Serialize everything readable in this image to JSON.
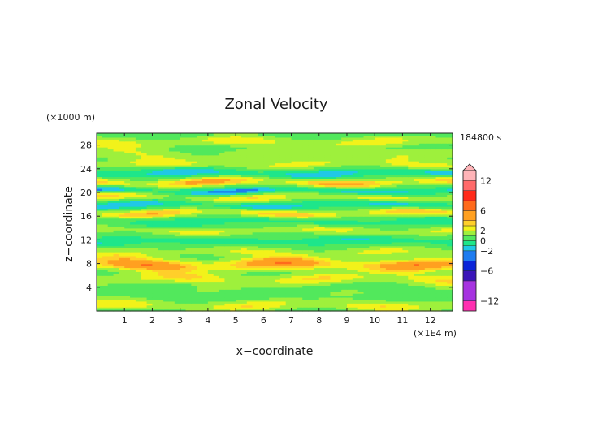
{
  "chart_data": {
    "type": "heatmap",
    "title": "Zonal Velocity",
    "xlabel": "x−coordinate",
    "ylabel": "z−coordinate",
    "x_unit": "(×1E4 m)",
    "y_unit": "(×1000 m)",
    "time_label": "184800 s",
    "xlim": [
      0,
      12.8
    ],
    "ylim": [
      0,
      30
    ],
    "x_ticks": [
      "1",
      "2",
      "3",
      "4",
      "5",
      "6",
      "7",
      "8",
      "9",
      "10",
      "11",
      "12"
    ],
    "y_ticks": [
      "4",
      "8",
      "12",
      "16",
      "20",
      "24",
      "28"
    ],
    "colorbar": {
      "range": [
        -14,
        14
      ],
      "tick_labels": [
        "12",
        "6",
        "2",
        "0",
        "−2",
        "−6",
        "−12"
      ],
      "tick_values": [
        12,
        6,
        2,
        0,
        -2,
        -6,
        -12
      ],
      "colors": {
        "lt_neg14": "#ff2fb0",
        "lt_neg12": "#a633e0",
        "lt_neg8": "#3a14b8",
        "lt_neg6": "#0a24d8",
        "lt_neg4": "#1e7cf0",
        "lt_neg2": "#20c8e6",
        "lt_neg1": "#1ee68a",
        "lt_0": "#52e85c",
        "lt_1": "#9ef03c",
        "lt_2": "#f2f21a",
        "lt_3": "#ffcf2a",
        "lt_4": "#ffa020",
        "lt_6": "#ff6a1c",
        "lt_8": "#ff2a1a",
        "lt_10": "#ff6a6a",
        "lt_14": "#ffb4b8"
      }
    },
    "bands": [
      {
        "z": 1.0,
        "u": 2.4,
        "w": 0.9
      },
      {
        "z": 3.5,
        "u": 0.6,
        "w": 1.0
      },
      {
        "z": 5.5,
        "u": 2.6,
        "w": 0.9
      },
      {
        "z": 7.9,
        "u": 5.2,
        "w": 1.0
      },
      {
        "z": 10.0,
        "u": 1.8,
        "w": 0.9
      },
      {
        "z": 11.8,
        "u": -1.4,
        "w": 0.8
      },
      {
        "z": 13.7,
        "u": 2.0,
        "w": 0.8
      },
      {
        "z": 15.1,
        "u": -1.2,
        "w": 0.8
      },
      {
        "z": 16.6,
        "u": 3.4,
        "w": 0.7
      },
      {
        "z": 18.0,
        "u": -2.2,
        "w": 0.7
      },
      {
        "z": 19.3,
        "u": 2.6,
        "w": 0.8
      },
      {
        "z": 20.3,
        "u": -3.0,
        "w": 0.6
      },
      {
        "z": 21.8,
        "u": 4.0,
        "w": 0.7
      },
      {
        "z": 23.3,
        "u": -2.2,
        "w": 0.7
      },
      {
        "z": 24.8,
        "u": 2.0,
        "w": 0.8
      },
      {
        "z": 26.5,
        "u": 1.4,
        "w": 1.0
      },
      {
        "z": 28.6,
        "u": 2.2,
        "w": 0.9
      }
    ]
  }
}
